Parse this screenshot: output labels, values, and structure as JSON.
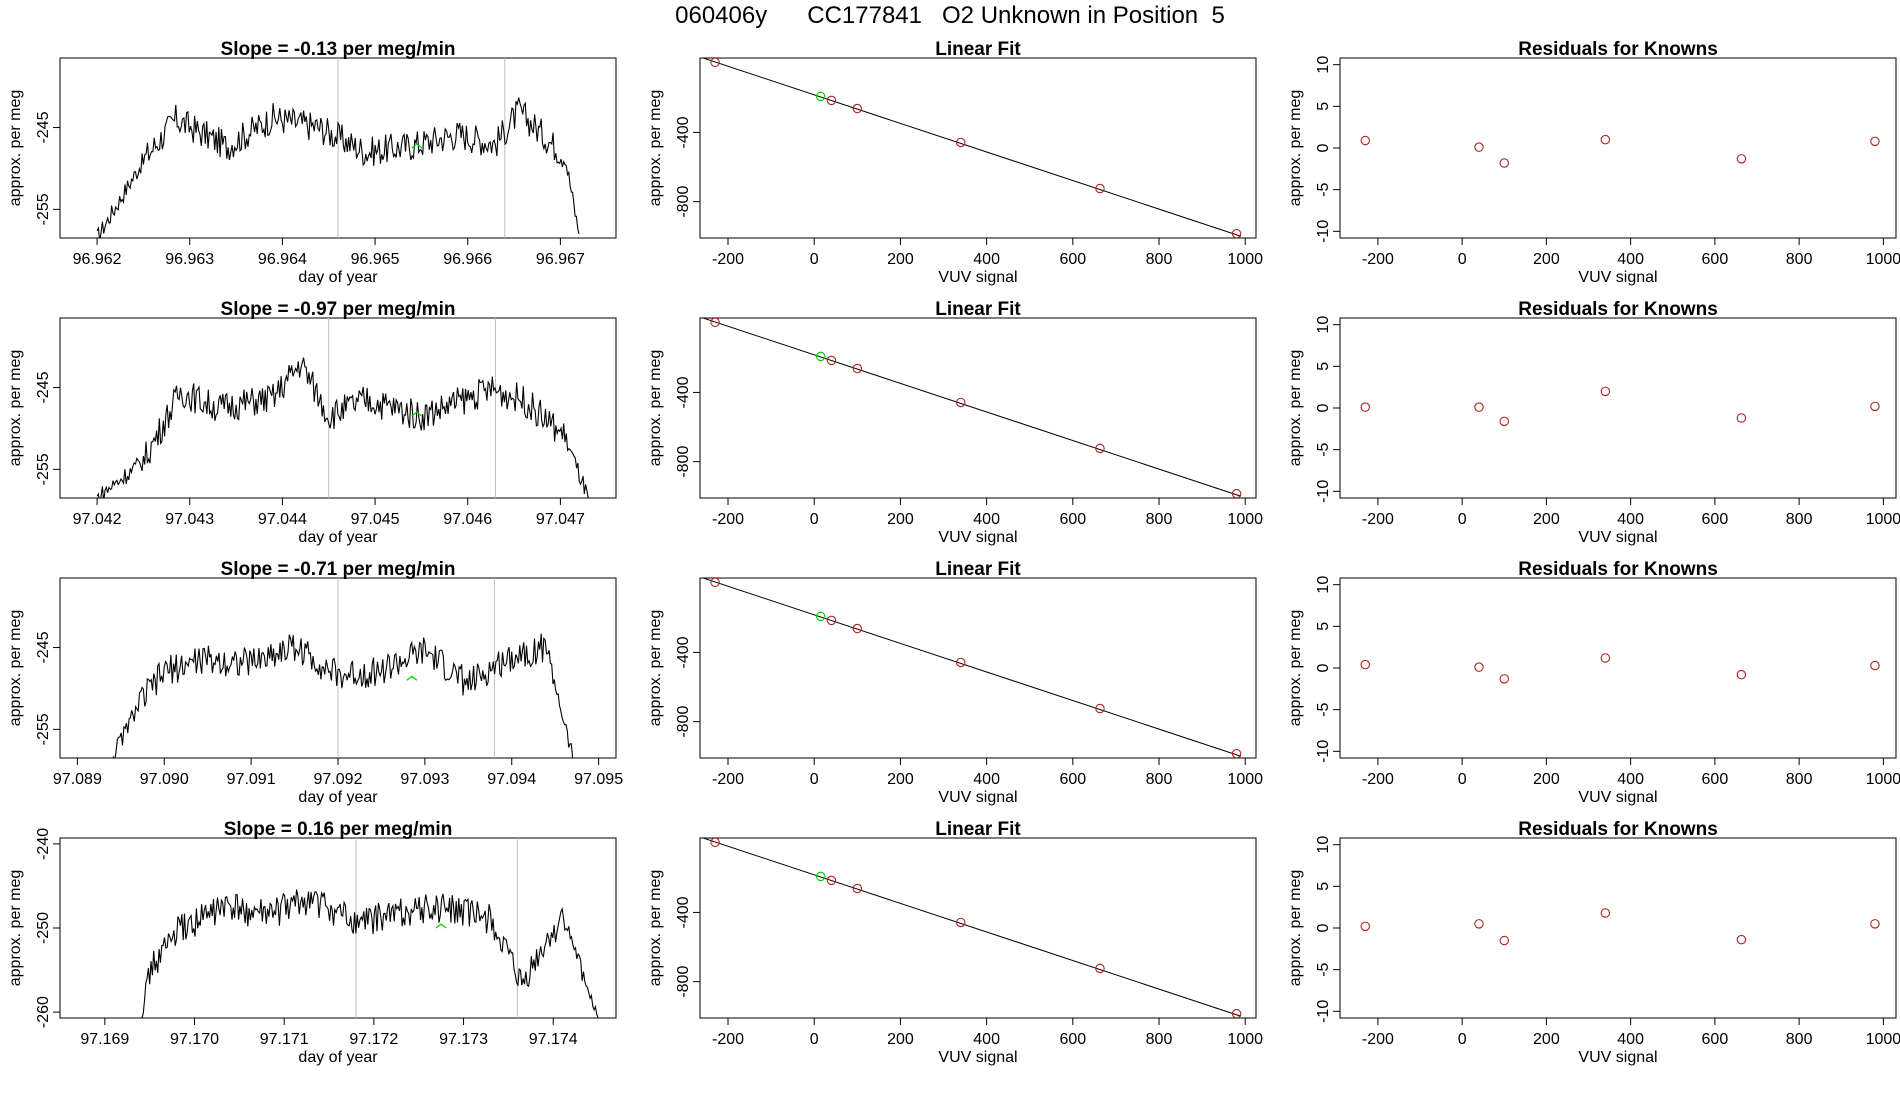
{
  "header": {
    "sample_id": "060406y",
    "cylinder": "CC177841",
    "description": "O2 Unknown in Position  5"
  },
  "chart_data": [
    {
      "type": "line",
      "title": "Slope =  -0.13  per meg/min",
      "xlabel": "day of year",
      "ylabel": "approx. per meg",
      "xlim": [
        96.9616,
        96.9676
      ],
      "ylim": [
        -258.5,
        -236.5
      ],
      "xticks": [
        "96.962",
        "96.963",
        "96.964",
        "96.965",
        "96.966",
        "96.967"
      ],
      "yticks": [
        "-245",
        "-255"
      ],
      "vlines": [
        96.9646,
        96.9664
      ],
      "series": [
        {
          "x": [
            96.962,
            96.9625,
            96.96285,
            96.9634,
            96.9639,
            96.9644,
            96.9649,
            96.9654,
            96.9659,
            96.9663,
            96.96655,
            96.96705,
            96.9672
          ],
          "y": [
            -258.5,
            -249,
            -244,
            -247.3,
            -243.8,
            -245,
            -248,
            -247.2,
            -245.8,
            -247,
            -243,
            -248.5,
            -258
          ]
        }
      ],
      "markers": [
        {
          "x": 96.96545,
          "y": -247.5,
          "color": "#00cc00"
        }
      ]
    },
    {
      "type": "scatter",
      "title": "Linear Fit",
      "xlabel": "VUV signal",
      "ylabel": "approx. per meg",
      "xlim": [
        -265,
        1025
      ],
      "ylim": [
        -1010,
        30
      ],
      "xticks": [
        "-200",
        "0",
        "200",
        "400",
        "600",
        "800",
        "1000"
      ],
      "yticks": [
        "-400",
        "-800"
      ],
      "fit_line": {
        "x": [
          -265,
          990
        ],
        "y": [
          36,
          -1000
        ]
      },
      "points": [
        {
          "x": -230,
          "y": 5,
          "color": "#b22222"
        },
        {
          "x": 15,
          "y": -192,
          "color": "#00cc00"
        },
        {
          "x": 40,
          "y": -215,
          "color": "#b22222"
        },
        {
          "x": 100,
          "y": -262,
          "color": "#b22222"
        },
        {
          "x": 340,
          "y": -458,
          "color": "#b22222"
        },
        {
          "x": 663,
          "y": -724,
          "color": "#b22222"
        },
        {
          "x": 980,
          "y": -985,
          "color": "#b22222"
        }
      ]
    },
    {
      "type": "scatter",
      "title": "Residuals for Knowns",
      "xlabel": "VUV signal",
      "ylabel": "approx. per meg",
      "xlim": [
        -290,
        1030
      ],
      "ylim": [
        -10.8,
        10.8
      ],
      "xticks": [
        "-200",
        "0",
        "200",
        "400",
        "600",
        "800",
        "1000"
      ],
      "yticks": [
        "10",
        "5",
        "0",
        "-5",
        "-10"
      ],
      "points": [
        {
          "x": -230,
          "y": 0.9,
          "color": "#b22222"
        },
        {
          "x": 40,
          "y": 0.1,
          "color": "#b22222"
        },
        {
          "x": 100,
          "y": -1.8,
          "color": "#b22222"
        },
        {
          "x": 340,
          "y": 1.0,
          "color": "#b22222"
        },
        {
          "x": 663,
          "y": -1.3,
          "color": "#b22222"
        },
        {
          "x": 980,
          "y": 0.8,
          "color": "#b22222"
        }
      ]
    },
    {
      "type": "line",
      "title": "Slope =  -0.97  per meg/min",
      "xlabel": "day of year",
      "ylabel": "approx. per meg",
      "xlim": [
        97.0416,
        97.0476
      ],
      "ylim": [
        -258.5,
        -236.5
      ],
      "xticks": [
        "97.042",
        "97.043",
        "97.044",
        "97.045",
        "97.046",
        "97.047"
      ],
      "yticks": [
        "-245",
        "-255"
      ],
      "vlines": [
        97.0445,
        97.0463
      ],
      "series": [
        {
          "x": [
            97.042,
            97.0425,
            97.0429,
            97.0433,
            97.0439,
            97.0442,
            97.0445,
            97.0449,
            97.0455,
            97.04625,
            97.0466,
            97.04705,
            97.0473
          ],
          "y": [
            -258.5,
            -254,
            -245.5,
            -247.5,
            -246.3,
            -242,
            -248.5,
            -246.5,
            -248.5,
            -245.2,
            -246.5,
            -251,
            -258.5
          ]
        }
      ],
      "markers": [
        {
          "x": 97.04545,
          "y": -248.5,
          "color": "#00cc00"
        }
      ]
    },
    {
      "type": "scatter",
      "title": "Linear Fit",
      "xlabel": "VUV signal",
      "ylabel": "approx. per meg",
      "xlim": [
        -265,
        1025
      ],
      "ylim": [
        -1010,
        30
      ],
      "xticks": [
        "-200",
        "0",
        "200",
        "400",
        "600",
        "800",
        "1000"
      ],
      "yticks": [
        "-400",
        "-800"
      ],
      "fit_line": {
        "x": [
          -265,
          990
        ],
        "y": [
          36,
          -1000
        ]
      },
      "points": [
        {
          "x": -230,
          "y": 5,
          "color": "#b22222"
        },
        {
          "x": 15,
          "y": -192,
          "color": "#00cc00"
        },
        {
          "x": 40,
          "y": -215,
          "color": "#b22222"
        },
        {
          "x": 100,
          "y": -262,
          "color": "#b22222"
        },
        {
          "x": 340,
          "y": -458,
          "color": "#b22222"
        },
        {
          "x": 663,
          "y": -724,
          "color": "#b22222"
        },
        {
          "x": 980,
          "y": -985,
          "color": "#b22222"
        }
      ]
    },
    {
      "type": "scatter",
      "title": "Residuals for Knowns",
      "xlabel": "VUV signal",
      "ylabel": "approx. per meg",
      "xlim": [
        -290,
        1030
      ],
      "ylim": [
        -10.8,
        10.8
      ],
      "xticks": [
        "-200",
        "0",
        "200",
        "400",
        "600",
        "800",
        "1000"
      ],
      "yticks": [
        "10",
        "5",
        "0",
        "-5",
        "-10"
      ],
      "points": [
        {
          "x": -230,
          "y": 0.1,
          "color": "#b22222"
        },
        {
          "x": 40,
          "y": 0.1,
          "color": "#b22222"
        },
        {
          "x": 100,
          "y": -1.6,
          "color": "#b22222"
        },
        {
          "x": 340,
          "y": 2.0,
          "color": "#b22222"
        },
        {
          "x": 663,
          "y": -1.2,
          "color": "#b22222"
        },
        {
          "x": 980,
          "y": 0.2,
          "color": "#b22222"
        }
      ]
    },
    {
      "type": "line",
      "title": "Slope =  -0.71  per meg/min",
      "xlabel": "day of year",
      "ylabel": "approx. per meg",
      "xlim": [
        97.0888,
        97.0952
      ],
      "ylim": [
        -258.5,
        -236.5
      ],
      "xticks": [
        "97.089",
        "97.090",
        "97.091",
        "97.092",
        "97.093",
        "97.094",
        "97.095"
      ],
      "yticks": [
        "-245",
        "-255"
      ],
      "vlines": [
        97.092,
        97.0938
      ],
      "series": [
        {
          "x": [
            97.0894,
            97.0897,
            97.09,
            97.0904,
            97.091,
            97.0915,
            97.092,
            97.0925,
            97.093,
            97.0935,
            97.094,
            97.0944,
            97.0947
          ],
          "y": [
            -258.5,
            -252,
            -248,
            -246.5,
            -246.8,
            -244.8,
            -248.5,
            -247.8,
            -245.5,
            -249.5,
            -246,
            -245,
            -258.5
          ]
        }
      ],
      "markers": [
        {
          "x": 97.09285,
          "y": -249,
          "color": "#00cc00"
        }
      ]
    },
    {
      "type": "scatter",
      "title": "Linear Fit",
      "xlabel": "VUV signal",
      "ylabel": "approx. per meg",
      "xlim": [
        -265,
        1025
      ],
      "ylim": [
        -1010,
        30
      ],
      "xticks": [
        "-200",
        "0",
        "200",
        "400",
        "600",
        "800",
        "1000"
      ],
      "yticks": [
        "-400",
        "-800"
      ],
      "fit_line": {
        "x": [
          -265,
          990
        ],
        "y": [
          36,
          -1000
        ]
      },
      "points": [
        {
          "x": -230,
          "y": 5,
          "color": "#b22222"
        },
        {
          "x": 15,
          "y": -192,
          "color": "#00cc00"
        },
        {
          "x": 40,
          "y": -215,
          "color": "#b22222"
        },
        {
          "x": 100,
          "y": -262,
          "color": "#b22222"
        },
        {
          "x": 340,
          "y": -458,
          "color": "#b22222"
        },
        {
          "x": 663,
          "y": -724,
          "color": "#b22222"
        },
        {
          "x": 980,
          "y": -985,
          "color": "#b22222"
        }
      ]
    },
    {
      "type": "scatter",
      "title": "Residuals for Knowns",
      "xlabel": "VUV signal",
      "ylabel": "approx. per meg",
      "xlim": [
        -290,
        1030
      ],
      "ylim": [
        -10.8,
        10.8
      ],
      "xticks": [
        "-200",
        "0",
        "200",
        "400",
        "600",
        "800",
        "1000"
      ],
      "yticks": [
        "10",
        "5",
        "0",
        "-5",
        "-10"
      ],
      "points": [
        {
          "x": -230,
          "y": 0.4,
          "color": "#b22222"
        },
        {
          "x": 40,
          "y": 0.1,
          "color": "#b22222"
        },
        {
          "x": 100,
          "y": -1.3,
          "color": "#b22222"
        },
        {
          "x": 340,
          "y": 1.2,
          "color": "#b22222"
        },
        {
          "x": 663,
          "y": -0.8,
          "color": "#b22222"
        },
        {
          "x": 980,
          "y": 0.3,
          "color": "#b22222"
        }
      ]
    },
    {
      "type": "line",
      "title": "Slope =  0.16  per meg/min",
      "xlabel": "day of year",
      "ylabel": "approx. per meg",
      "xlim": [
        97.1685,
        97.1747
      ],
      "ylim": [
        -260.7,
        -239.3
      ],
      "xticks": [
        "97.169",
        "97.170",
        "97.171",
        "97.172",
        "97.173",
        "97.174"
      ],
      "yticks": [
        "-240",
        "-250",
        "-260"
      ],
      "vlines": [
        97.1718,
        97.1736
      ],
      "series": [
        {
          "x": [
            97.1694,
            97.1695,
            97.1698,
            97.1703,
            97.1708,
            97.1713,
            97.1718,
            97.1723,
            97.1728,
            97.1733,
            97.17365,
            97.1741,
            97.1745
          ],
          "y": [
            -260.7,
            -255,
            -250.5,
            -247.5,
            -248.5,
            -246.5,
            -249.5,
            -248,
            -247.5,
            -249,
            -257,
            -248.5,
            -260.7
          ]
        }
      ],
      "markers": [
        {
          "x": 97.17275,
          "y": -250,
          "color": "#00cc00"
        }
      ]
    },
    {
      "type": "scatter",
      "title": "Linear Fit",
      "xlabel": "VUV signal",
      "ylabel": "approx. per meg",
      "xlim": [
        -265,
        1025
      ],
      "ylim": [
        -1010,
        30
      ],
      "xticks": [
        "-200",
        "0",
        "200",
        "400",
        "600",
        "800",
        "1000"
      ],
      "yticks": [
        "-400",
        "-800"
      ],
      "fit_line": {
        "x": [
          -265,
          990
        ],
        "y": [
          36,
          -1000
        ]
      },
      "points": [
        {
          "x": -230,
          "y": 5,
          "color": "#b22222"
        },
        {
          "x": 15,
          "y": -192,
          "color": "#00cc00"
        },
        {
          "x": 40,
          "y": -215,
          "color": "#b22222"
        },
        {
          "x": 100,
          "y": -262,
          "color": "#b22222"
        },
        {
          "x": 340,
          "y": -458,
          "color": "#b22222"
        },
        {
          "x": 663,
          "y": -724,
          "color": "#b22222"
        },
        {
          "x": 980,
          "y": -985,
          "color": "#b22222"
        }
      ]
    },
    {
      "type": "scatter",
      "title": "Residuals for Knowns",
      "xlabel": "VUV signal",
      "ylabel": "approx. per meg",
      "xlim": [
        -290,
        1030
      ],
      "ylim": [
        -10.8,
        10.8
      ],
      "xticks": [
        "-200",
        "0",
        "200",
        "400",
        "600",
        "800",
        "1000"
      ],
      "yticks": [
        "10",
        "5",
        "0",
        "-5",
        "-10"
      ],
      "points": [
        {
          "x": -230,
          "y": 0.2,
          "color": "#b22222"
        },
        {
          "x": 40,
          "y": 0.5,
          "color": "#b22222"
        },
        {
          "x": 100,
          "y": -1.5,
          "color": "#b22222"
        },
        {
          "x": 340,
          "y": 1.8,
          "color": "#b22222"
        },
        {
          "x": 663,
          "y": -1.4,
          "color": "#b22222"
        },
        {
          "x": 980,
          "y": 0.5,
          "color": "#b22222"
        }
      ]
    }
  ]
}
